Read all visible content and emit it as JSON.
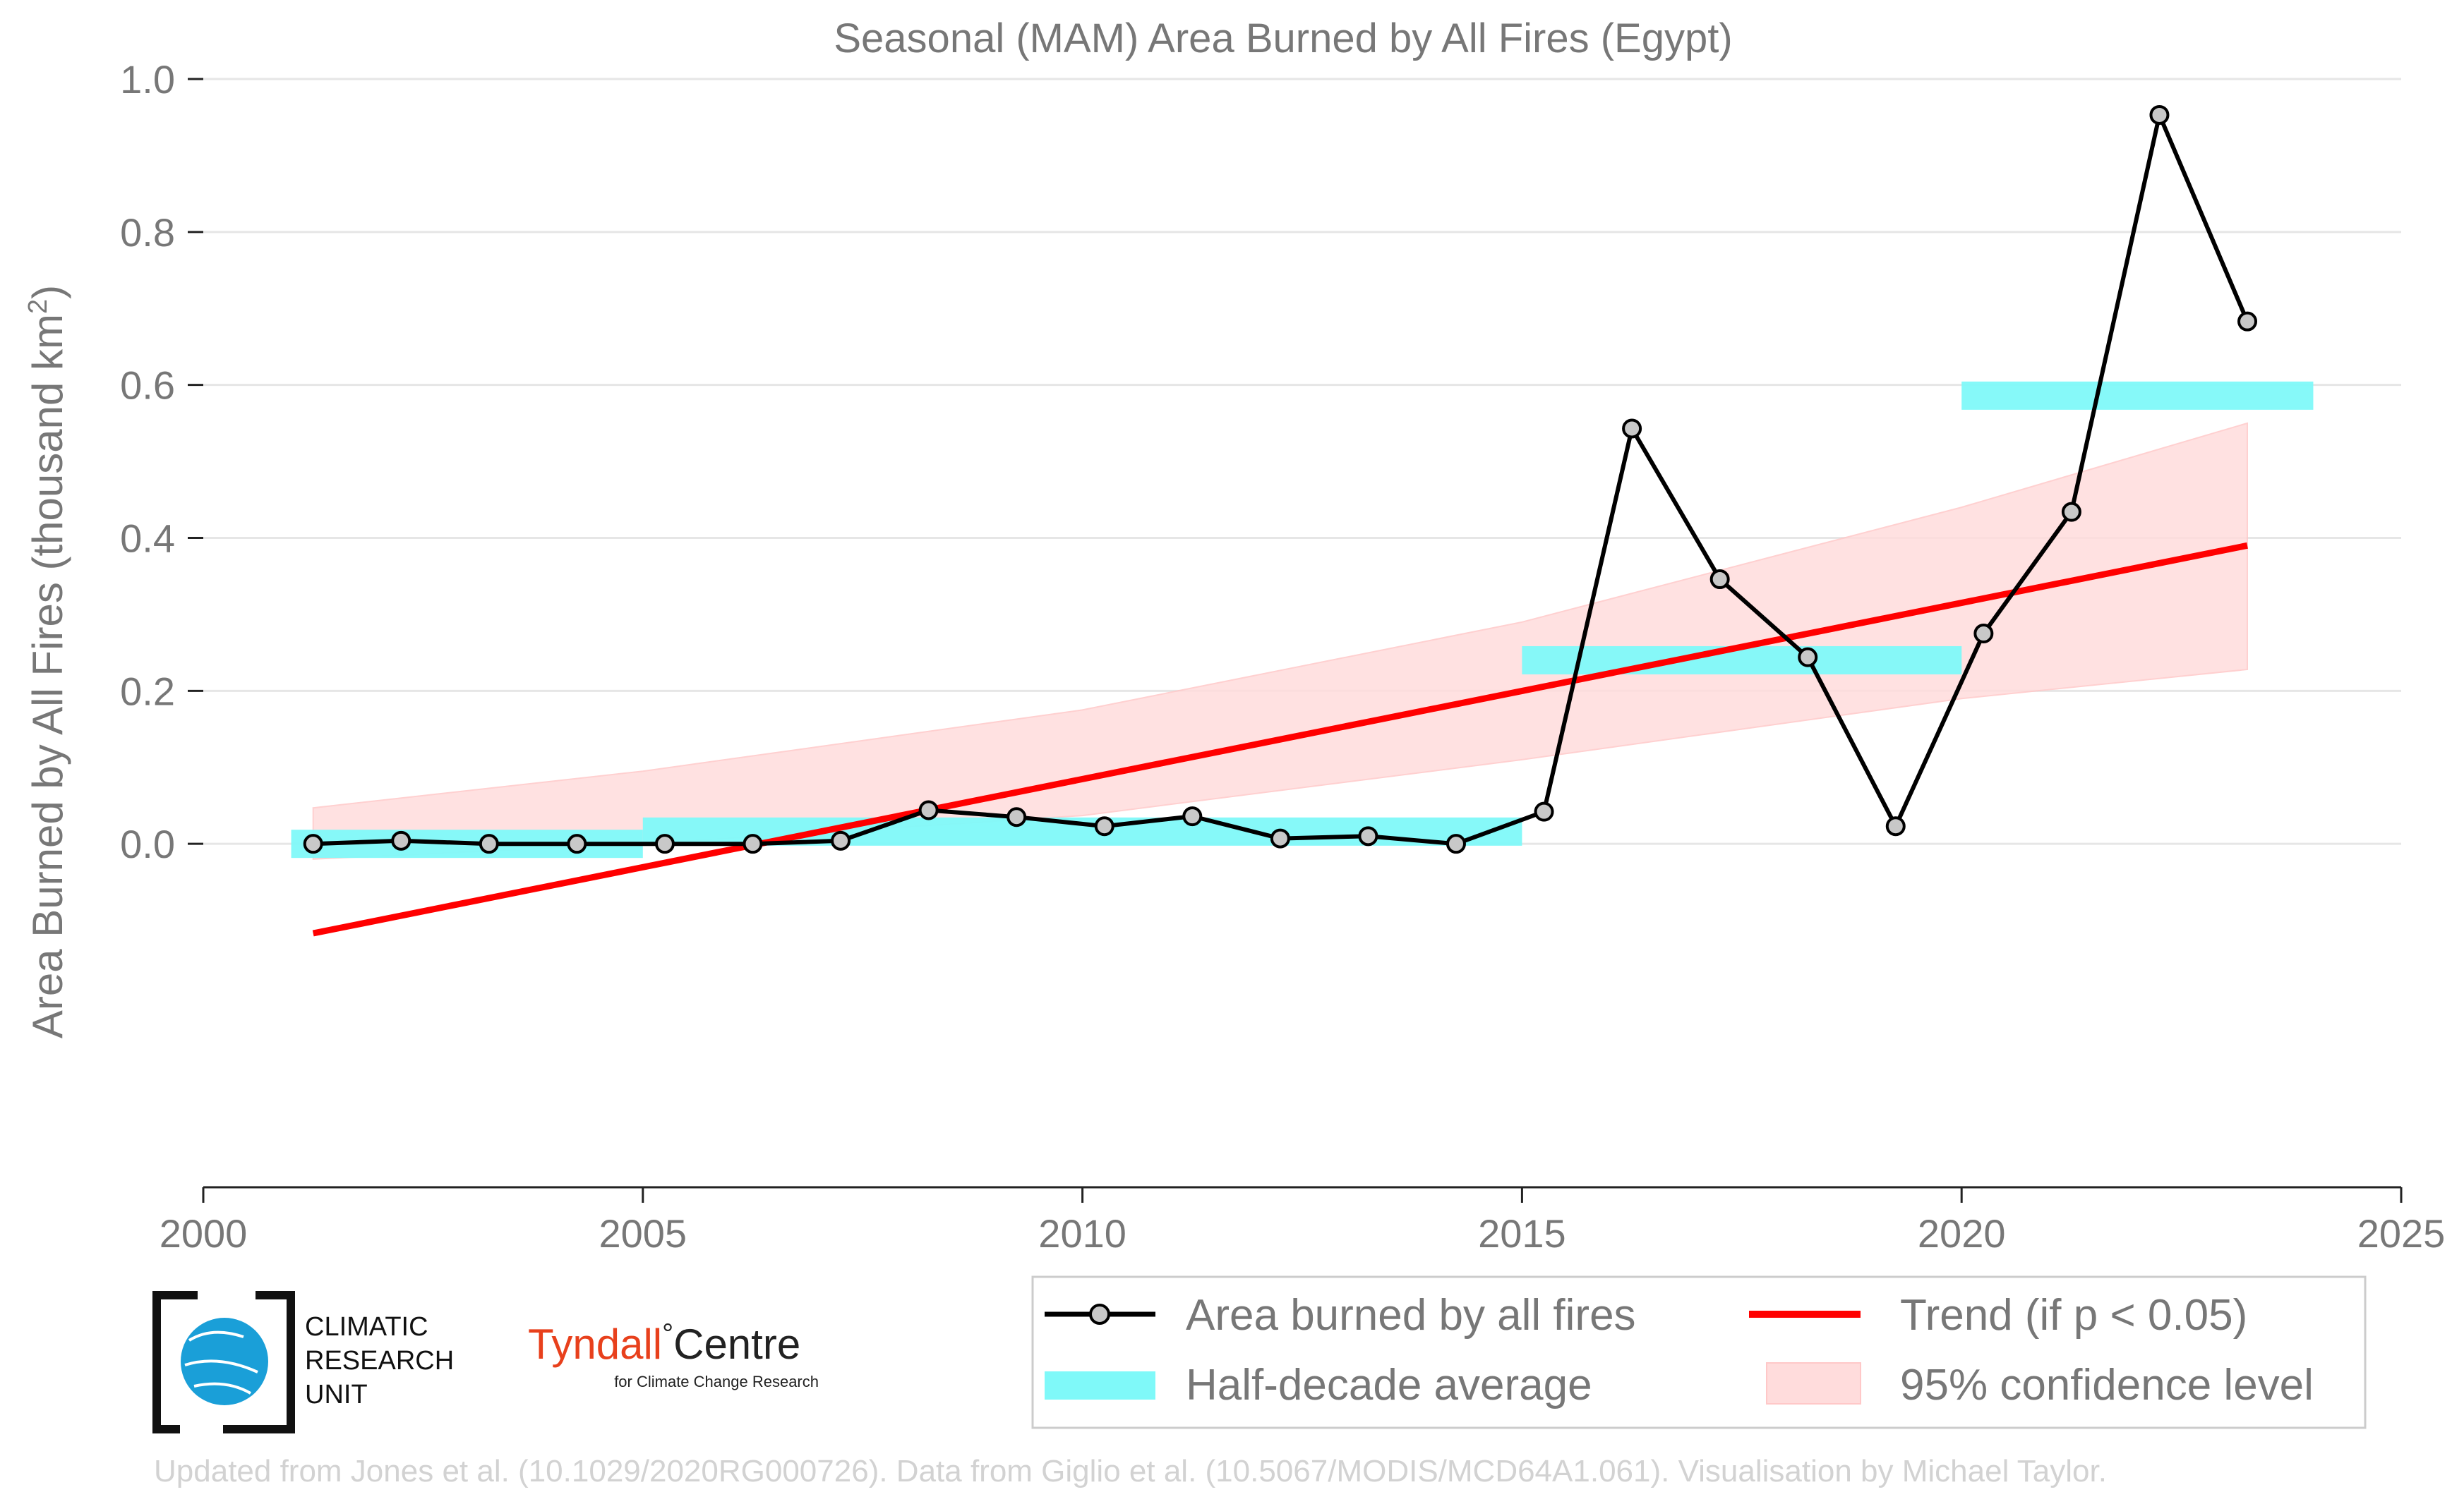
{
  "chart_data": {
    "type": "line",
    "title": "Seasonal (MAM) Area Burned by All Fires (Egypt)",
    "xlabel": "",
    "ylabel": "Area Burned by All Fires (thousand km",
    "ylabel_sup": "2",
    "ylabel_end": ")",
    "xlim": [
      2000,
      2025
    ],
    "ylim": [
      -0.2,
      1.0
    ],
    "xticks": [
      2000,
      2005,
      2010,
      2015,
      2020,
      2025
    ],
    "yticks": [
      0.0,
      0.2,
      0.4,
      0.6,
      0.8,
      1.0
    ],
    "ytick_labels": [
      "0.0",
      "0.2",
      "0.4",
      "0.6",
      "0.8",
      "1.0"
    ],
    "grid": "horizontal",
    "legend_position": "bottom-right, below plot",
    "series": [
      {
        "name": "Area burned by all fires",
        "kind": "line-markers",
        "color": "#000000",
        "marker_fill": "#c8c8c8",
        "x": [
          2001.25,
          2002.25,
          2003.25,
          2004.25,
          2005.25,
          2006.25,
          2007.25,
          2008.25,
          2009.25,
          2010.25,
          2011.25,
          2012.25,
          2013.25,
          2014.25,
          2015.25,
          2016.25,
          2017.25,
          2018.25,
          2019.25,
          2020.25,
          2021.25,
          2022.25,
          2023.25
        ],
        "y": [
          0.0,
          0.004,
          0.0,
          0.0,
          0.0,
          0.0,
          0.004,
          0.044,
          0.035,
          0.023,
          0.036,
          0.007,
          0.01,
          0.0,
          0.042,
          0.543,
          0.346,
          0.244,
          0.023,
          0.275,
          0.434,
          0.953,
          0.683
        ]
      },
      {
        "name": "Half-decade average",
        "kind": "segments",
        "color": "#7ff9f9",
        "segments": [
          {
            "x0": 2001,
            "x1": 2005,
            "y": 0.0
          },
          {
            "x0": 2005,
            "x1": 2015,
            "y": 0.016
          },
          {
            "x0": 2015,
            "x1": 2020,
            "y": 0.24
          },
          {
            "x0": 2020,
            "x1": 2024,
            "y": 0.586
          }
        ]
      },
      {
        "name": "Trend (if p < 0.05)",
        "kind": "line",
        "color": "#ff0000",
        "x": [
          2001.25,
          2023.25
        ],
        "y": [
          -0.117,
          0.39
        ]
      },
      {
        "name": "95% confidence level",
        "kind": "band",
        "color": "#ffdcdc",
        "x": [
          2001.25,
          2005,
          2010,
          2015,
          2020,
          2023.25
        ],
        "upper": [
          0.047,
          0.095,
          0.175,
          0.29,
          0.44,
          0.55
        ],
        "lower": [
          -0.02,
          0.0,
          0.037,
          0.11,
          0.19,
          0.228
        ]
      }
    ],
    "credit": "Updated from Jones et al. (10.1029/2020RG000726). Data from Giglio et al. (10.5067/MODIS/MCD64A1.061). Visualisation by Michael Taylor."
  },
  "logos": {
    "cru_line1": "CLIMATIC",
    "cru_line2": "RESEARCH",
    "cru_line3": "UNIT",
    "tyndall_main": "Tyndall",
    "tyndall_degree": "°",
    "tyndall_centre": "Centre",
    "tyndall_sub": "for Climate Change Research",
    "cru_globe_color": "#1a9fd8",
    "tyndall_color": "#e8401c"
  }
}
